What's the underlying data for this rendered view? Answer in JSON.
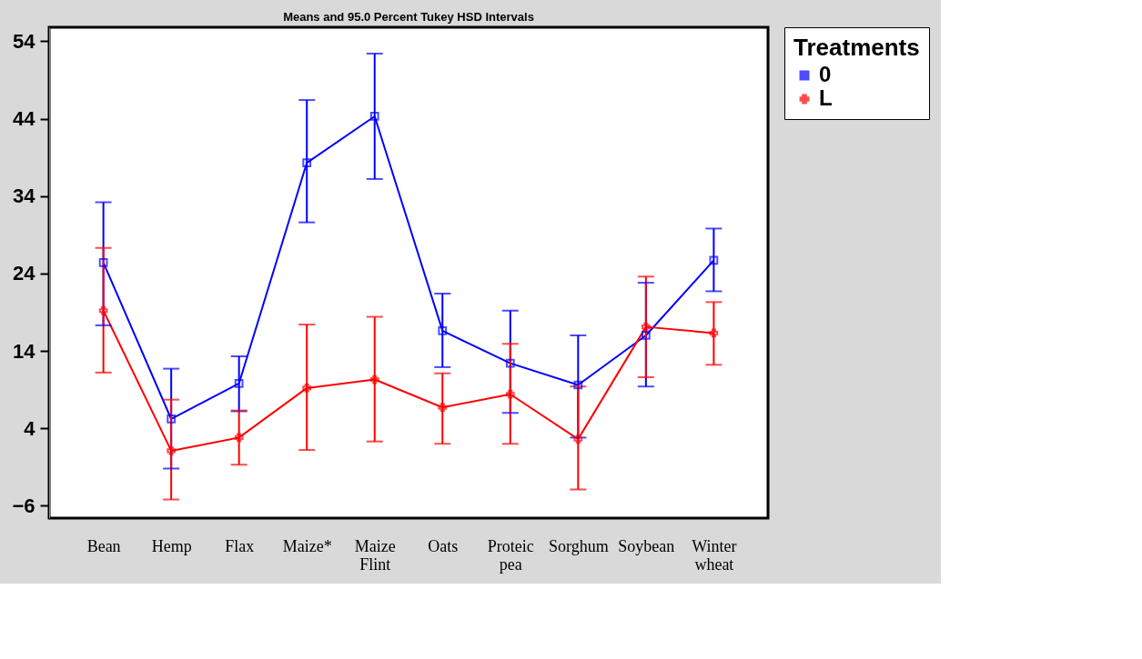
{
  "chart_data": {
    "type": "line",
    "title": "Means and 95.0 Percent Tukey HSD Intervals",
    "legend_title": "Treatments",
    "categories": [
      "Bean",
      "Hemp",
      "Flax",
      "Maize*",
      "Maize Flint",
      "Oats",
      "Proteic pea",
      "Sorghum",
      "Soybean",
      "Winter wheat"
    ],
    "series": [
      {
        "name": "0",
        "color": "#0000ff",
        "marker": "square",
        "values": [
          25.4,
          5.2,
          9.8,
          38.3,
          44.3,
          16.6,
          12.4,
          9.6,
          16,
          25.7
        ],
        "errors": [
          [
            17.3,
            33.2
          ],
          [
            -1.2,
            11.7
          ],
          [
            6.2,
            13.3
          ],
          [
            30.6,
            46.4
          ],
          [
            36.2,
            52.4
          ],
          [
            11.9,
            21.4
          ],
          [
            6,
            19.2
          ],
          [
            2.8,
            16
          ],
          [
            9.4,
            22.8
          ],
          [
            21.7,
            29.8
          ]
        ]
      },
      {
        "name": "L",
        "color": "#ff0000",
        "marker": "cross",
        "values": [
          19.2,
          1.1,
          2.8,
          9.2,
          10.3,
          6.7,
          8.4,
          2.6,
          17.1,
          16.3
        ],
        "errors": [
          [
            11.2,
            27.3
          ],
          [
            -5.2,
            7.7
          ],
          [
            -0.7,
            6.3
          ],
          [
            1.2,
            17.4
          ],
          [
            2.3,
            18.4
          ],
          [
            2,
            11.1
          ],
          [
            2,
            14.9
          ],
          [
            -3.9,
            9.4
          ],
          [
            10.6,
            23.6
          ],
          [
            12.2,
            20.3
          ]
        ]
      }
    ],
    "ylim": [
      -7.6,
      55.8
    ],
    "yticks": [
      -6,
      4,
      14,
      24,
      34,
      44,
      54
    ],
    "legend": "top right"
  }
}
